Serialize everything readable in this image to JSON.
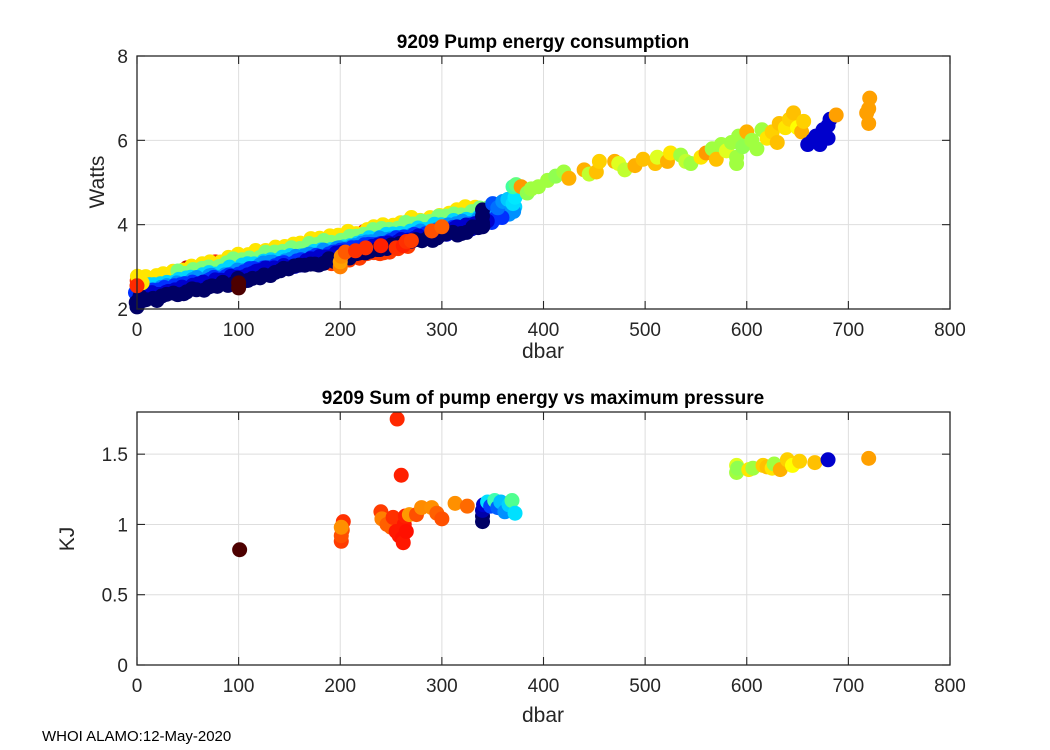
{
  "footer": "WHOI ALAMO:12-May-2020",
  "chart_data": [
    {
      "type": "scatter",
      "title": "9209 Pump energy consumption",
      "xlabel": "dbar",
      "ylabel": "Watts",
      "xlim": [
        0,
        800
      ],
      "ylim": [
        2,
        8
      ],
      "xticks": [
        "0",
        "100",
        "200",
        "300",
        "400",
        "500",
        "600",
        "700",
        "800"
      ],
      "xtick_values": [
        0,
        100,
        200,
        300,
        400,
        500,
        600,
        700,
        800
      ],
      "yticks": [
        "2",
        "4",
        "6",
        "8"
      ],
      "ytick_values": [
        2,
        4,
        6,
        8
      ],
      "grid": true,
      "colormap": "jet",
      "bands": [
        {
          "name": "red",
          "color": "#ff2a00",
          "x0": 0,
          "x1": 280,
          "y0": 2.55,
          "slope": 0.00505,
          "offset": 0.12,
          "step": 6
        },
        {
          "name": "red-low",
          "color": "#ff3c00",
          "x0": 190,
          "x1": 270,
          "y0": 2.3,
          "slope": 0.0046,
          "offset": -0.05,
          "step": 6
        },
        {
          "name": "darkred",
          "color": "#c00000",
          "x0": 20,
          "x1": 120,
          "y0": 2.62,
          "slope": 0.0052,
          "offset": 0.06,
          "step": 10
        },
        {
          "name": "yellow",
          "color": "#ffe600",
          "x0": 0,
          "x1": 340,
          "y0": 2.62,
          "slope": 0.00505,
          "offset": 0.13,
          "step": 9
        },
        {
          "name": "green",
          "color": "#7dff7a",
          "x0": 40,
          "x1": 370,
          "y0": 2.55,
          "slope": 0.0051,
          "offset": 0.1,
          "step": 8
        },
        {
          "name": "cyan",
          "color": "#00d4ff",
          "x0": 0,
          "x1": 375,
          "y0": 2.45,
          "slope": 0.0051,
          "offset": 0.03,
          "step": 6
        },
        {
          "name": "lightblue",
          "color": "#0090ff",
          "x0": 0,
          "x1": 370,
          "y0": 2.4,
          "slope": 0.0051,
          "offset": 0.0,
          "step": 5
        },
        {
          "name": "blue",
          "color": "#0030ff",
          "x0": 0,
          "x1": 360,
          "y0": 2.35,
          "slope": 0.0051,
          "offset": -0.02,
          "step": 4
        },
        {
          "name": "midblue",
          "color": "#0000cc",
          "x0": 0,
          "x1": 345,
          "y0": 2.3,
          "slope": 0.0052,
          "offset": -0.05,
          "step": 4
        },
        {
          "name": "navy",
          "color": "#000066",
          "x0": 0,
          "x1": 340,
          "y0": 2.22,
          "slope": 0.0053,
          "offset": -0.08,
          "step": 5
        }
      ],
      "points": [
        {
          "x": 0,
          "y": 2.05,
          "c": "#000066"
        },
        {
          "x": 2,
          "y": 2.15,
          "c": "#000066"
        },
        {
          "x": 3,
          "y": 2.3,
          "c": "#000066"
        },
        {
          "x": 5,
          "y": 2.62,
          "c": "#ffe600"
        },
        {
          "x": 0,
          "y": 2.55,
          "c": "#ff2a00"
        },
        {
          "x": 100,
          "y": 2.5,
          "c": "#4d0000"
        },
        {
          "x": 100,
          "y": 2.62,
          "c": "#4d0000"
        },
        {
          "x": 200,
          "y": 3.0,
          "c": "#ff8000"
        },
        {
          "x": 200,
          "y": 3.12,
          "c": "#ffa000"
        },
        {
          "x": 201,
          "y": 3.25,
          "c": "#ff8c00"
        },
        {
          "x": 205,
          "y": 3.35,
          "c": "#ff5a00"
        },
        {
          "x": 215,
          "y": 3.38,
          "c": "#ff3000"
        },
        {
          "x": 225,
          "y": 3.45,
          "c": "#ff3000"
        },
        {
          "x": 240,
          "y": 3.5,
          "c": "#ff2000"
        },
        {
          "x": 255,
          "y": 3.45,
          "c": "#ff3000"
        },
        {
          "x": 262,
          "y": 3.5,
          "c": "#ff2000"
        },
        {
          "x": 265,
          "y": 3.6,
          "c": "#ff3000"
        },
        {
          "x": 270,
          "y": 3.62,
          "c": "#ff3c00"
        },
        {
          "x": 290,
          "y": 3.85,
          "c": "#ff5000"
        },
        {
          "x": 300,
          "y": 3.95,
          "c": "#ff6000"
        },
        {
          "x": 340,
          "y": 3.95,
          "c": "#000066"
        },
        {
          "x": 340,
          "y": 4.05,
          "c": "#000066"
        },
        {
          "x": 340,
          "y": 4.2,
          "c": "#000066"
        },
        {
          "x": 340,
          "y": 4.35,
          "c": "#000066"
        },
        {
          "x": 350,
          "y": 4.5,
          "c": "#0050ff"
        },
        {
          "x": 355,
          "y": 4.4,
          "c": "#0070ff"
        },
        {
          "x": 360,
          "y": 4.55,
          "c": "#0090ff"
        },
        {
          "x": 365,
          "y": 4.6,
          "c": "#00c8ff"
        },
        {
          "x": 370,
          "y": 4.5,
          "c": "#00dcff"
        },
        {
          "x": 372,
          "y": 4.65,
          "c": "#00e8ff"
        },
        {
          "x": 370,
          "y": 4.9,
          "c": "#40ff9f"
        },
        {
          "x": 373,
          "y": 4.95,
          "c": "#60ff80"
        },
        {
          "x": 378,
          "y": 4.9,
          "c": "#ff9900"
        },
        {
          "x": 384,
          "y": 4.75,
          "c": "#90ff50"
        },
        {
          "x": 388,
          "y": 4.85,
          "c": "#a0ff40"
        },
        {
          "x": 395,
          "y": 4.9,
          "c": "#a0ff40"
        },
        {
          "x": 404,
          "y": 5.05,
          "c": "#a0ff40"
        },
        {
          "x": 412,
          "y": 5.15,
          "c": "#90ff50"
        },
        {
          "x": 420,
          "y": 5.25,
          "c": "#a0ff40"
        },
        {
          "x": 425,
          "y": 5.1,
          "c": "#ffb000"
        },
        {
          "x": 440,
          "y": 5.3,
          "c": "#ffb000"
        },
        {
          "x": 445,
          "y": 5.2,
          "c": "#c0ff30"
        },
        {
          "x": 452,
          "y": 5.25,
          "c": "#ffc000"
        },
        {
          "x": 455,
          "y": 5.5,
          "c": "#ffd000"
        },
        {
          "x": 470,
          "y": 5.5,
          "c": "#ffb000"
        },
        {
          "x": 474,
          "y": 5.45,
          "c": "#e0ff20"
        },
        {
          "x": 480,
          "y": 5.3,
          "c": "#c0ff30"
        },
        {
          "x": 490,
          "y": 5.4,
          "c": "#ffb000"
        },
        {
          "x": 498,
          "y": 5.55,
          "c": "#ffc000"
        },
        {
          "x": 510,
          "y": 5.45,
          "c": "#ffc000"
        },
        {
          "x": 512,
          "y": 5.6,
          "c": "#e0ff20"
        },
        {
          "x": 522,
          "y": 5.5,
          "c": "#ffb000"
        },
        {
          "x": 525,
          "y": 5.7,
          "c": "#ffe600"
        },
        {
          "x": 535,
          "y": 5.65,
          "c": "#a0ff40"
        },
        {
          "x": 540,
          "y": 5.5,
          "c": "#c0ff30"
        },
        {
          "x": 545,
          "y": 5.45,
          "c": "#a0ff40"
        },
        {
          "x": 555,
          "y": 5.6,
          "c": "#ffe600"
        },
        {
          "x": 560,
          "y": 5.7,
          "c": "#ff9900"
        },
        {
          "x": 566,
          "y": 5.8,
          "c": "#a0ff40"
        },
        {
          "x": 570,
          "y": 5.55,
          "c": "#ffc000"
        },
        {
          "x": 575,
          "y": 5.9,
          "c": "#a0ff40"
        },
        {
          "x": 580,
          "y": 5.75,
          "c": "#e0ff20"
        },
        {
          "x": 585,
          "y": 5.95,
          "c": "#a0ff40"
        },
        {
          "x": 590,
          "y": 5.6,
          "c": "#a0ff40"
        },
        {
          "x": 590,
          "y": 5.45,
          "c": "#a0ff40"
        },
        {
          "x": 592,
          "y": 6.1,
          "c": "#a0ff40"
        },
        {
          "x": 596,
          "y": 5.85,
          "c": "#90ff50"
        },
        {
          "x": 600,
          "y": 6.2,
          "c": "#ffb000"
        },
        {
          "x": 605,
          "y": 6.0,
          "c": "#a0ff40"
        },
        {
          "x": 610,
          "y": 5.8,
          "c": "#a0ff40"
        },
        {
          "x": 615,
          "y": 6.25,
          "c": "#a0ff40"
        },
        {
          "x": 620,
          "y": 6.05,
          "c": "#ffe600"
        },
        {
          "x": 625,
          "y": 6.2,
          "c": "#ffd000"
        },
        {
          "x": 630,
          "y": 5.95,
          "c": "#ffc000"
        },
        {
          "x": 632,
          "y": 6.4,
          "c": "#ffc000"
        },
        {
          "x": 638,
          "y": 6.3,
          "c": "#ffe600"
        },
        {
          "x": 642,
          "y": 6.5,
          "c": "#ffd000"
        },
        {
          "x": 646,
          "y": 6.65,
          "c": "#ffc000"
        },
        {
          "x": 650,
          "y": 6.3,
          "c": "#ffff00"
        },
        {
          "x": 654,
          "y": 6.2,
          "c": "#ffb000"
        },
        {
          "x": 656,
          "y": 6.45,
          "c": "#ffd000"
        },
        {
          "x": 660,
          "y": 5.9,
          "c": "#0000cc"
        },
        {
          "x": 665,
          "y": 6.0,
          "c": "#0000cc"
        },
        {
          "x": 668,
          "y": 6.1,
          "c": "#0000cc"
        },
        {
          "x": 672,
          "y": 5.9,
          "c": "#0000cc"
        },
        {
          "x": 675,
          "y": 6.25,
          "c": "#0000cc"
        },
        {
          "x": 680,
          "y": 6.05,
          "c": "#0000cc"
        },
        {
          "x": 680,
          "y": 6.35,
          "c": "#0000cc"
        },
        {
          "x": 682,
          "y": 6.5,
          "c": "#0000cc"
        },
        {
          "x": 688,
          "y": 6.6,
          "c": "#ffa000"
        },
        {
          "x": 718,
          "y": 6.65,
          "c": "#ffa000"
        },
        {
          "x": 720,
          "y": 6.4,
          "c": "#ffa000"
        },
        {
          "x": 720,
          "y": 6.75,
          "c": "#ffa000"
        },
        {
          "x": 721,
          "y": 7.0,
          "c": "#ffa000"
        }
      ]
    },
    {
      "type": "scatter",
      "title": "9209 Sum of pump energy vs maximum pressure",
      "xlabel": "dbar",
      "ylabel": "KJ",
      "xlim": [
        0,
        800
      ],
      "ylim": [
        0,
        1.8
      ],
      "xticks": [
        "0",
        "100",
        "200",
        "300",
        "400",
        "500",
        "600",
        "700",
        "800"
      ],
      "xtick_values": [
        0,
        100,
        200,
        300,
        400,
        500,
        600,
        700,
        800
      ],
      "yticks": [
        "0",
        "0.5",
        "1",
        "1.5"
      ],
      "ytick_values": [
        0,
        0.5,
        1,
        1.5
      ],
      "grid": true,
      "colormap": "jet",
      "points": [
        {
          "x": 101,
          "y": 0.82,
          "c": "#4d0000"
        },
        {
          "x": 201,
          "y": 0.88,
          "c": "#ff3c00"
        },
        {
          "x": 201,
          "y": 0.92,
          "c": "#ff5000"
        },
        {
          "x": 202,
          "y": 0.96,
          "c": "#ff5000"
        },
        {
          "x": 203,
          "y": 1.02,
          "c": "#ff3000"
        },
        {
          "x": 201,
          "y": 0.98,
          "c": "#ff9000"
        },
        {
          "x": 240,
          "y": 1.09,
          "c": "#ff3c00"
        },
        {
          "x": 241,
          "y": 1.04,
          "c": "#ff8000"
        },
        {
          "x": 246,
          "y": 1.0,
          "c": "#ff6000"
        },
        {
          "x": 250,
          "y": 0.98,
          "c": "#ff6000"
        },
        {
          "x": 252,
          "y": 1.05,
          "c": "#ff3000"
        },
        {
          "x": 255,
          "y": 0.95,
          "c": "#ff1800"
        },
        {
          "x": 256,
          "y": 1.75,
          "c": "#ff2800"
        },
        {
          "x": 258,
          "y": 0.92,
          "c": "#ff1800"
        },
        {
          "x": 260,
          "y": 1.35,
          "c": "#ff2000"
        },
        {
          "x": 261,
          "y": 0.9,
          "c": "#ff1000"
        },
        {
          "x": 262,
          "y": 0.87,
          "c": "#ff1800"
        },
        {
          "x": 263,
          "y": 1.0,
          "c": "#ff1800"
        },
        {
          "x": 264,
          "y": 1.06,
          "c": "#ff2000"
        },
        {
          "x": 265,
          "y": 0.95,
          "c": "#ff1000"
        },
        {
          "x": 268,
          "y": 1.07,
          "c": "#ff9900"
        },
        {
          "x": 275,
          "y": 1.07,
          "c": "#ff5000"
        },
        {
          "x": 280,
          "y": 1.12,
          "c": "#ff8c00"
        },
        {
          "x": 290,
          "y": 1.12,
          "c": "#ff9000"
        },
        {
          "x": 295,
          "y": 1.08,
          "c": "#ff6000"
        },
        {
          "x": 300,
          "y": 1.04,
          "c": "#ff5000"
        },
        {
          "x": 313,
          "y": 1.15,
          "c": "#ff9000"
        },
        {
          "x": 325,
          "y": 1.13,
          "c": "#ff6a00"
        },
        {
          "x": 340,
          "y": 1.02,
          "c": "#000066"
        },
        {
          "x": 340,
          "y": 1.06,
          "c": "#000066"
        },
        {
          "x": 340,
          "y": 1.1,
          "c": "#0000aa"
        },
        {
          "x": 341,
          "y": 1.14,
          "c": "#0000cc"
        },
        {
          "x": 345,
          "y": 1.16,
          "c": "#00e0ff"
        },
        {
          "x": 348,
          "y": 1.13,
          "c": "#0040ff"
        },
        {
          "x": 352,
          "y": 1.17,
          "c": "#40ffb0"
        },
        {
          "x": 355,
          "y": 1.12,
          "c": "#0060ff"
        },
        {
          "x": 358,
          "y": 1.16,
          "c": "#00c0ff"
        },
        {
          "x": 362,
          "y": 1.09,
          "c": "#0090ff"
        },
        {
          "x": 366,
          "y": 1.14,
          "c": "#00d0ff"
        },
        {
          "x": 369,
          "y": 1.17,
          "c": "#50ff90"
        },
        {
          "x": 372,
          "y": 1.08,
          "c": "#00e0ff"
        },
        {
          "x": 590,
          "y": 1.37,
          "c": "#a0ff40"
        },
        {
          "x": 590,
          "y": 1.42,
          "c": "#e0ff20"
        },
        {
          "x": 591,
          "y": 1.4,
          "c": "#90ff50"
        },
        {
          "x": 602,
          "y": 1.39,
          "c": "#ffe600"
        },
        {
          "x": 606,
          "y": 1.4,
          "c": "#a0ff40"
        },
        {
          "x": 616,
          "y": 1.42,
          "c": "#ffd000"
        },
        {
          "x": 620,
          "y": 1.41,
          "c": "#ffc000"
        },
        {
          "x": 625,
          "y": 1.4,
          "c": "#ffe600"
        },
        {
          "x": 627,
          "y": 1.43,
          "c": "#a0ff40"
        },
        {
          "x": 633,
          "y": 1.39,
          "c": "#ffb000"
        },
        {
          "x": 640,
          "y": 1.46,
          "c": "#ffd000"
        },
        {
          "x": 645,
          "y": 1.42,
          "c": "#ffff00"
        },
        {
          "x": 652,
          "y": 1.45,
          "c": "#ffd000"
        },
        {
          "x": 667,
          "y": 1.44,
          "c": "#ffc000"
        },
        {
          "x": 680,
          "y": 1.46,
          "c": "#0000cc"
        },
        {
          "x": 720,
          "y": 1.47,
          "c": "#ffa000"
        }
      ]
    }
  ]
}
